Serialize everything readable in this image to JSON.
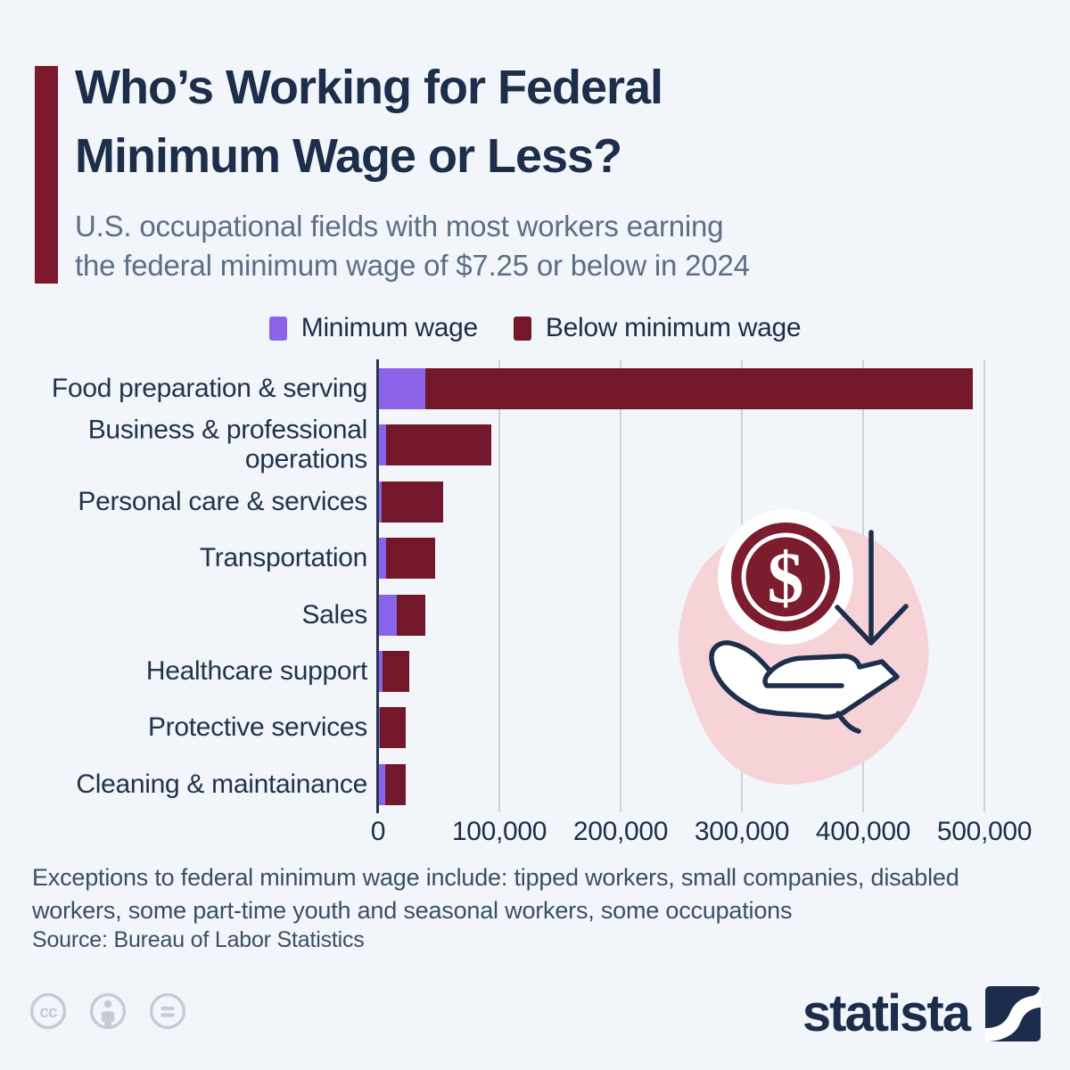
{
  "header": {
    "title_line1": "Who’s Working for Federal",
    "title_line2": "Minimum Wage or Less?",
    "subtitle_line1": "U.S. occupational fields with most workers earning",
    "subtitle_line2": "the federal minimum wage of $7.25 or below in 2024"
  },
  "chart_data": {
    "type": "bar",
    "orientation": "horizontal",
    "stacked": true,
    "categories": [
      "Food preparation & serving",
      "Business & professional operations",
      "Personal care & services",
      "Transportation",
      "Sales",
      "Healthcare support",
      "Protective services",
      "Cleaning & maintainance"
    ],
    "series": [
      {
        "name": "Minimum wage",
        "color": "#8a63e8",
        "values": [
          38000,
          6000,
          2000,
          6000,
          15000,
          3000,
          1000,
          5000
        ]
      },
      {
        "name": "Below minimum wage",
        "color": "#72182a",
        "values": [
          452000,
          87000,
          51000,
          40000,
          23000,
          22000,
          21000,
          17000
        ]
      }
    ],
    "totals": [
      490000,
      93000,
      53000,
      46000,
      38000,
      25000,
      22000,
      22000
    ],
    "xlim": [
      0,
      500000
    ],
    "xticks": {
      "values": [
        0,
        100000,
        200000,
        300000,
        400000,
        500000
      ],
      "labels": [
        "0",
        "100,000",
        "200,000",
        "300,000",
        "400,000",
        "500,000"
      ]
    },
    "grid": "vertical",
    "legend_position": "top"
  },
  "decor": {
    "coin_glyph": "$",
    "blob_color": "#f5d3d7",
    "coin_color": "#7c1d2e",
    "outline_color": "#1d2f4d"
  },
  "footnote": "Exceptions to federal minimum wage include: tipped workers, small companies, disabled workers, some part-time youth and seasonal workers, some occupations",
  "source": "Source: Bureau of Labor Statistics",
  "branding": {
    "logo_text": "statista"
  },
  "footer_icons": {
    "cc_glyph": "cc"
  },
  "colors": {
    "background": "#f2f6fa",
    "accent": "#7d1a2e",
    "title": "#1c2e4a",
    "subtitle": "#5d6e84",
    "gridline": "#ccd3dc",
    "axis": "#27374f",
    "footer_icon_gray": "#c4cbd5"
  }
}
